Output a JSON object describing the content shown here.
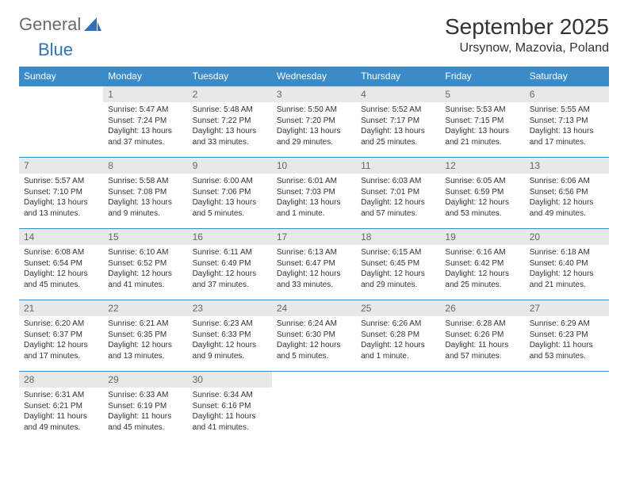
{
  "logo": {
    "word1": "General",
    "word2": "Blue"
  },
  "title": "September 2025",
  "location": "Ursynow, Mazovia, Poland",
  "colors": {
    "header_bg": "#3b8bc9",
    "header_text": "#ffffff",
    "daynum_bg": "#e8e8e8",
    "daynum_text": "#666666",
    "cell_border": "#3b8bc9",
    "body_text": "#333333",
    "logo_gray": "#6a6a6a",
    "logo_blue": "#2e72b8",
    "page_bg": "#ffffff"
  },
  "weekdays": [
    "Sunday",
    "Monday",
    "Tuesday",
    "Wednesday",
    "Thursday",
    "Friday",
    "Saturday"
  ],
  "weeks": [
    [
      null,
      {
        "n": "1",
        "sr": "5:47 AM",
        "ss": "7:24 PM",
        "dl": "13 hours and 37 minutes."
      },
      {
        "n": "2",
        "sr": "5:48 AM",
        "ss": "7:22 PM",
        "dl": "13 hours and 33 minutes."
      },
      {
        "n": "3",
        "sr": "5:50 AM",
        "ss": "7:20 PM",
        "dl": "13 hours and 29 minutes."
      },
      {
        "n": "4",
        "sr": "5:52 AM",
        "ss": "7:17 PM",
        "dl": "13 hours and 25 minutes."
      },
      {
        "n": "5",
        "sr": "5:53 AM",
        "ss": "7:15 PM",
        "dl": "13 hours and 21 minutes."
      },
      {
        "n": "6",
        "sr": "5:55 AM",
        "ss": "7:13 PM",
        "dl": "13 hours and 17 minutes."
      }
    ],
    [
      {
        "n": "7",
        "sr": "5:57 AM",
        "ss": "7:10 PM",
        "dl": "13 hours and 13 minutes."
      },
      {
        "n": "8",
        "sr": "5:58 AM",
        "ss": "7:08 PM",
        "dl": "13 hours and 9 minutes."
      },
      {
        "n": "9",
        "sr": "6:00 AM",
        "ss": "7:06 PM",
        "dl": "13 hours and 5 minutes."
      },
      {
        "n": "10",
        "sr": "6:01 AM",
        "ss": "7:03 PM",
        "dl": "13 hours and 1 minute."
      },
      {
        "n": "11",
        "sr": "6:03 AM",
        "ss": "7:01 PM",
        "dl": "12 hours and 57 minutes."
      },
      {
        "n": "12",
        "sr": "6:05 AM",
        "ss": "6:59 PM",
        "dl": "12 hours and 53 minutes."
      },
      {
        "n": "13",
        "sr": "6:06 AM",
        "ss": "6:56 PM",
        "dl": "12 hours and 49 minutes."
      }
    ],
    [
      {
        "n": "14",
        "sr": "6:08 AM",
        "ss": "6:54 PM",
        "dl": "12 hours and 45 minutes."
      },
      {
        "n": "15",
        "sr": "6:10 AM",
        "ss": "6:52 PM",
        "dl": "12 hours and 41 minutes."
      },
      {
        "n": "16",
        "sr": "6:11 AM",
        "ss": "6:49 PM",
        "dl": "12 hours and 37 minutes."
      },
      {
        "n": "17",
        "sr": "6:13 AM",
        "ss": "6:47 PM",
        "dl": "12 hours and 33 minutes."
      },
      {
        "n": "18",
        "sr": "6:15 AM",
        "ss": "6:45 PM",
        "dl": "12 hours and 29 minutes."
      },
      {
        "n": "19",
        "sr": "6:16 AM",
        "ss": "6:42 PM",
        "dl": "12 hours and 25 minutes."
      },
      {
        "n": "20",
        "sr": "6:18 AM",
        "ss": "6:40 PM",
        "dl": "12 hours and 21 minutes."
      }
    ],
    [
      {
        "n": "21",
        "sr": "6:20 AM",
        "ss": "6:37 PM",
        "dl": "12 hours and 17 minutes."
      },
      {
        "n": "22",
        "sr": "6:21 AM",
        "ss": "6:35 PM",
        "dl": "12 hours and 13 minutes."
      },
      {
        "n": "23",
        "sr": "6:23 AM",
        "ss": "6:33 PM",
        "dl": "12 hours and 9 minutes."
      },
      {
        "n": "24",
        "sr": "6:24 AM",
        "ss": "6:30 PM",
        "dl": "12 hours and 5 minutes."
      },
      {
        "n": "25",
        "sr": "6:26 AM",
        "ss": "6:28 PM",
        "dl": "12 hours and 1 minute."
      },
      {
        "n": "26",
        "sr": "6:28 AM",
        "ss": "6:26 PM",
        "dl": "11 hours and 57 minutes."
      },
      {
        "n": "27",
        "sr": "6:29 AM",
        "ss": "6:23 PM",
        "dl": "11 hours and 53 minutes."
      }
    ],
    [
      {
        "n": "28",
        "sr": "6:31 AM",
        "ss": "6:21 PM",
        "dl": "11 hours and 49 minutes."
      },
      {
        "n": "29",
        "sr": "6:33 AM",
        "ss": "6:19 PM",
        "dl": "11 hours and 45 minutes."
      },
      {
        "n": "30",
        "sr": "6:34 AM",
        "ss": "6:16 PM",
        "dl": "11 hours and 41 minutes."
      },
      null,
      null,
      null,
      null
    ]
  ],
  "labels": {
    "sunrise": "Sunrise:",
    "sunset": "Sunset:",
    "daylight": "Daylight:"
  }
}
